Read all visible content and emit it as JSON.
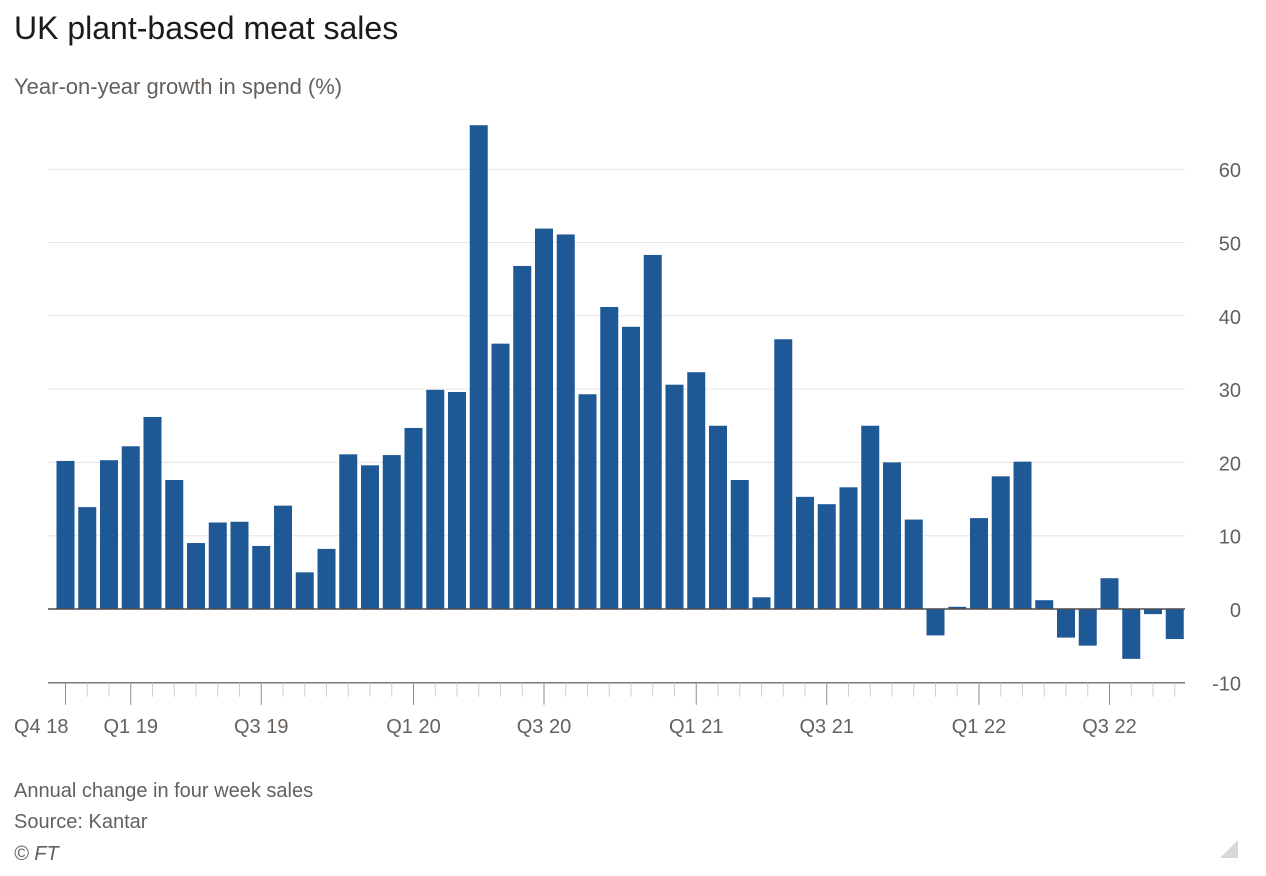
{
  "title": "UK plant-based meat sales",
  "subtitle": "Year-on-year growth in spend (%)",
  "footnotes": {
    "note": "Annual change in four week sales",
    "source": "Source: Kantar",
    "copyright": "© FT"
  },
  "colors": {
    "bar": "#1e5995",
    "grid": "#e6e6e6",
    "axis": "#4d4d4d",
    "tick_text": "#66605c"
  },
  "icons": {
    "resize": "resize-grip-icon"
  },
  "chart_data": {
    "type": "bar",
    "ylim": [
      -10,
      66
    ],
    "y_ticks": [
      -10,
      0,
      10,
      20,
      30,
      40,
      50,
      60
    ],
    "y_axis_side": "right",
    "grid": true,
    "x_tick_labels": [
      {
        "label": "Q4 18",
        "index": 0
      },
      {
        "label": "Q1 19",
        "index": 3
      },
      {
        "label": "Q3 19",
        "index": 9
      },
      {
        "label": "Q1 20",
        "index": 16
      },
      {
        "label": "Q3 20",
        "index": 22
      },
      {
        "label": "Q1 21",
        "index": 29
      },
      {
        "label": "Q3 21",
        "index": 35
      },
      {
        "label": "Q1 22",
        "index": 42
      },
      {
        "label": "Q3 22",
        "index": 48
      }
    ],
    "values": [
      20.2,
      13.9,
      20.3,
      22.2,
      26.2,
      17.6,
      9.0,
      11.8,
      11.9,
      8.6,
      14.1,
      5.0,
      8.2,
      21.1,
      19.6,
      21.0,
      24.7,
      29.9,
      29.6,
      66.0,
      36.2,
      46.8,
      51.9,
      51.1,
      29.3,
      41.2,
      38.5,
      48.3,
      30.6,
      32.3,
      25.0,
      17.6,
      1.6,
      36.8,
      15.3,
      14.3,
      16.6,
      25.0,
      20.0,
      12.2,
      -3.6,
      0.3,
      12.4,
      18.1,
      20.1,
      1.2,
      -3.9,
      -5.0,
      4.2,
      -6.8,
      -0.7,
      -4.1
    ]
  }
}
